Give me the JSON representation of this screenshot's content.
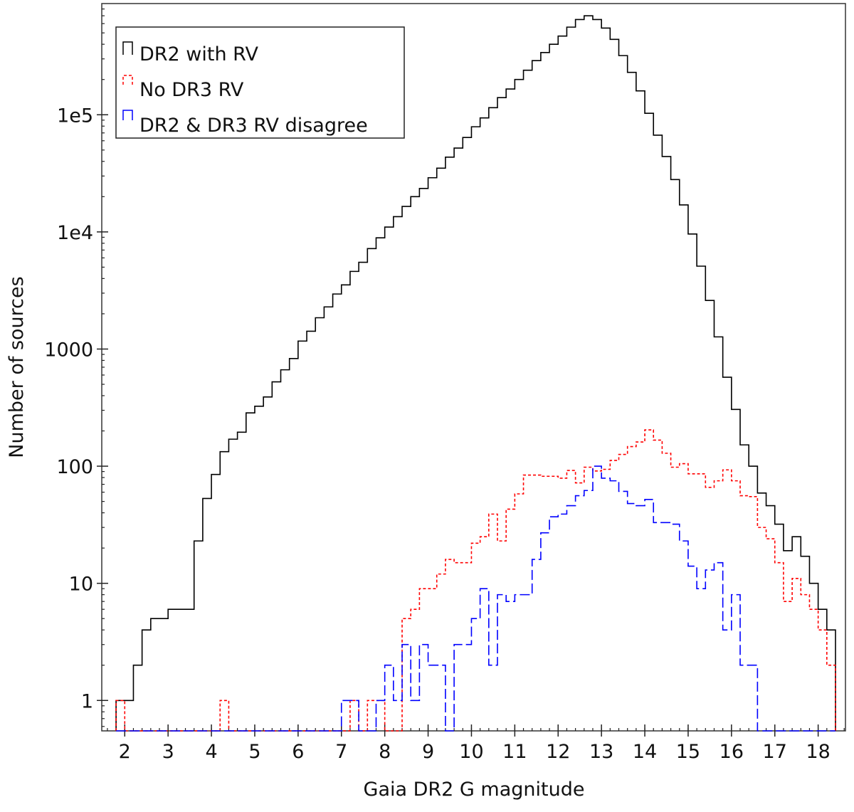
{
  "chart_data": {
    "type": "histogram-step",
    "title": "",
    "xlabel": "Gaia DR2 G magnitude",
    "ylabel": "Number of sources",
    "yscale": "log",
    "xlim": [
      1.47,
      18.63
    ],
    "ylim": [
      0.55,
      890000
    ],
    "bin_start": 1.8,
    "bin_width": 0.2,
    "x_ticks": [
      2,
      3,
      4,
      5,
      6,
      7,
      8,
      9,
      10,
      11,
      12,
      13,
      14,
      15,
      16,
      17,
      18
    ],
    "x_tick_labels": [
      "2",
      "3",
      "4",
      "5",
      "6",
      "7",
      "8",
      "9",
      "10",
      "11",
      "12",
      "13",
      "14",
      "15",
      "16",
      "17",
      "18"
    ],
    "y_ticks": [
      1,
      10,
      100,
      1000,
      10000,
      100000
    ],
    "y_tick_labels": [
      "1",
      "10",
      "100",
      "1000",
      "1e4",
      "1e5"
    ],
    "grid": false,
    "legend_position": "top-left",
    "series": [
      {
        "name": "DR2 with RV",
        "color": "#000000",
        "style": "solid",
        "values": [
          1,
          1,
          2,
          4,
          5,
          5,
          6,
          6,
          6,
          23,
          53,
          85,
          133,
          170,
          195,
          285,
          325,
          390,
          525,
          665,
          830,
          1170,
          1420,
          1850,
          2290,
          2950,
          3530,
          4600,
          5500,
          7200,
          8900,
          11000,
          13500,
          16500,
          20000,
          23500,
          29000,
          35000,
          43500,
          52000,
          64000,
          79000,
          94000,
          115000,
          140000,
          166000,
          200000,
          240000,
          290000,
          340000,
          400000,
          470000,
          560000,
          650000,
          700000,
          650000,
          550000,
          440000,
          320000,
          230000,
          160000,
          103000,
          67000,
          44000,
          28000,
          17000,
          9600,
          5100,
          2600,
          1270,
          575,
          305,
          152,
          100,
          59,
          46,
          32,
          19,
          25,
          17,
          10,
          6,
          4
        ]
      },
      {
        "name": "No DR3 RV",
        "color": "#ff0000",
        "style": "dashed",
        "values": [
          1,
          0,
          0,
          0,
          0,
          0,
          0,
          0,
          0,
          0,
          0,
          0,
          1,
          0,
          0,
          0,
          0,
          0,
          0,
          0,
          0,
          0,
          0,
          0,
          0,
          0,
          0,
          1,
          0,
          1,
          1,
          0,
          0,
          5,
          6,
          9,
          9,
          12,
          16,
          15,
          15,
          22,
          25,
          39,
          23,
          43,
          58,
          84,
          84,
          82,
          82,
          79,
          92,
          72,
          98,
          91,
          94,
          112,
          126,
          147,
          161,
          204,
          167,
          129,
          98,
          105,
          86,
          86,
          66,
          75,
          93,
          75,
          56,
          55,
          30,
          24,
          15,
          7,
          11,
          8,
          6,
          4,
          2
        ]
      },
      {
        "name": "DR2 & DR3 RV disagree",
        "color": "#0000ff",
        "style": "long-dashed",
        "values": [
          0,
          0,
          0,
          0,
          0,
          0,
          0,
          0,
          0,
          0,
          0,
          0,
          0,
          0,
          0,
          0,
          0,
          0,
          0,
          0,
          0,
          0,
          0,
          0,
          0,
          0,
          1,
          1,
          0,
          0,
          1,
          2,
          1,
          3,
          1,
          3,
          2,
          2,
          0,
          3,
          3,
          5,
          9,
          2,
          8,
          7,
          8,
          8,
          16,
          27,
          37,
          39,
          46,
          56,
          62,
          100,
          79,
          75,
          61,
          48,
          46,
          52,
          33,
          33,
          32,
          23,
          14,
          9,
          13,
          15,
          4,
          8,
          2,
          2,
          0,
          0,
          0,
          0,
          0,
          0,
          0,
          0,
          0
        ]
      }
    ]
  }
}
